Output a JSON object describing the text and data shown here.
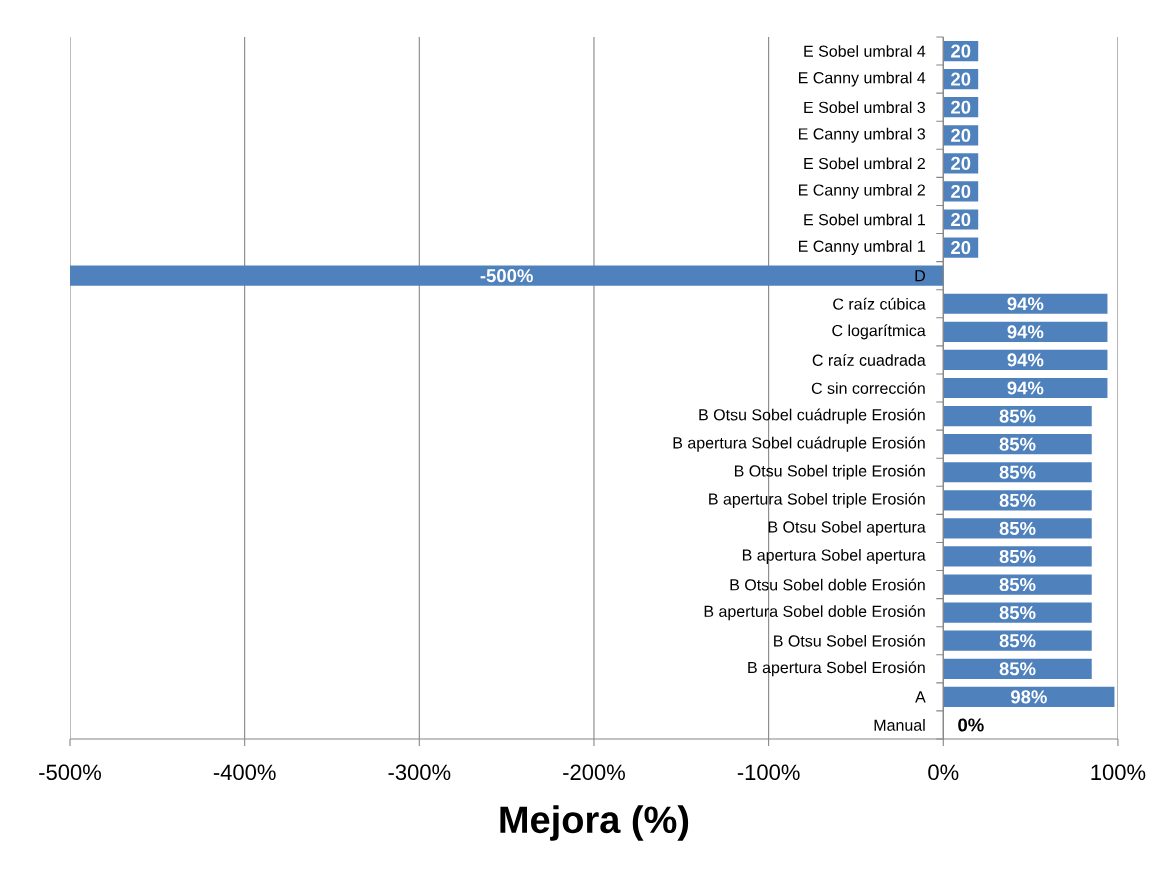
{
  "chart_data": {
    "type": "bar",
    "orientation": "horizontal",
    "xlabel": "Mejora (%)",
    "categories": [
      "E Sobel umbral 4",
      "E Canny umbral 4",
      "E Sobel umbral 3",
      "E Canny umbral 3",
      "E Sobel umbral 2",
      "E Canny umbral 2",
      "E Sobel umbral 1",
      "E Canny umbral 1",
      "D",
      "C raíz cúbica",
      "C logarítmica",
      "C raíz cuadrada",
      "C sin corrección",
      "B Otsu Sobel cuádruple Erosión",
      "B apertura Sobel cuádruple Erosión",
      "B Otsu Sobel triple Erosión",
      "B apertura Sobel triple Erosión",
      "B Otsu Sobel apertura",
      "B apertura Sobel apertura",
      "B Otsu Sobel doble Erosión",
      "B apertura Sobel doble Erosión",
      "B Otsu Sobel Erosión",
      "B apertura Sobel Erosión",
      "A",
      "Manual"
    ],
    "values": [
      20,
      20,
      20,
      20,
      20,
      20,
      20,
      20,
      -500,
      94,
      94,
      94,
      94,
      85,
      85,
      85,
      85,
      85,
      85,
      85,
      85,
      85,
      85,
      98,
      0
    ],
    "value_labels": [
      "20",
      "20",
      "20",
      "20",
      "20",
      "20",
      "20",
      "20",
      "-500%",
      "94%",
      "94%",
      "94%",
      "94%",
      "85%",
      "85%",
      "85%",
      "85%",
      "85%",
      "85%",
      "85%",
      "85%",
      "85%",
      "85%",
      "98%",
      "0%"
    ],
    "color": "#4f81bd",
    "xlim": [
      -500,
      100
    ],
    "xticks": [
      {
        "value": -500,
        "label": "-500%"
      },
      {
        "value": -400,
        "label": "-400%"
      },
      {
        "value": -300,
        "label": "-300%"
      },
      {
        "value": -200,
        "label": "-200%"
      },
      {
        "value": -100,
        "label": "-100%"
      },
      {
        "value": 0,
        "label": "0%"
      },
      {
        "value": 100,
        "label": "100%"
      }
    ],
    "grid": "x"
  }
}
